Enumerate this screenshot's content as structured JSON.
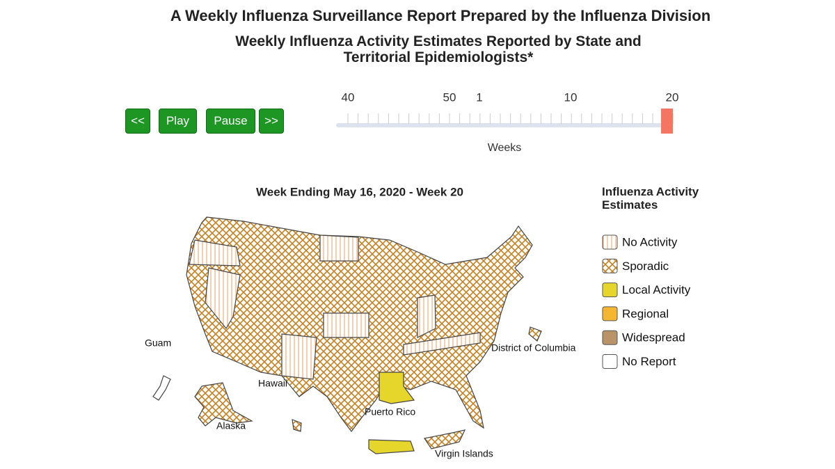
{
  "header": {
    "title": "A Weekly Influenza Surveillance Report Prepared by the Influenza Division",
    "subtitle": "Weekly Influenza Activity Estimates Reported by State and Territorial Epidemiologists*"
  },
  "controls": {
    "buttons": [
      "<<",
      "Play",
      "Pause",
      ">>"
    ]
  },
  "slider": {
    "ticks": [
      "40",
      "50",
      "1",
      "10",
      "20"
    ],
    "label": "Weeks"
  },
  "map": {
    "title": "Week Ending May 16, 2020 - Week 20",
    "labels": [
      "Guam",
      "Hawaii",
      "Alaska",
      "Puerto Rico",
      "Virgin Islands",
      "District of Columbia"
    ]
  },
  "legend": {
    "title": "Influenza Activity Estimates",
    "items": [
      "No Activity",
      "Sporadic",
      "Local Activity",
      "Regional",
      "Widespread",
      "No Report"
    ]
  }
}
